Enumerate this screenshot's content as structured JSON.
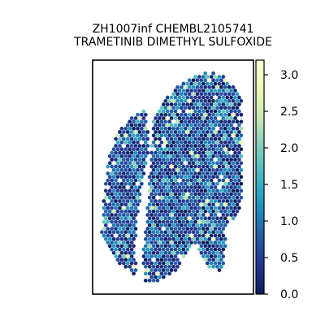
{
  "chart_data": {
    "type": "scatter",
    "subtype": "spatial-hexbin",
    "title_line1": "ZH1007inf CHEMBL2105741",
    "title_line2": "TRAMETINIB DIMETHYL SULFOXIDE",
    "xlabel": "",
    "ylabel": "",
    "x_ticks_visible": false,
    "y_ticks_visible": false,
    "grid": false,
    "colorbar": {
      "colormap": "YlGnBu_r",
      "range": [
        0.0,
        3.2
      ],
      "ticks": [
        0.0,
        0.5,
        1.0,
        1.5,
        2.0,
        2.5,
        3.0
      ],
      "tick_labels": [
        "0.0",
        "0.5",
        "1.0",
        "1.5",
        "2.0",
        "2.5",
        "3.0"
      ],
      "placement": "right"
    },
    "colormap_stops": [
      "#081d58",
      "#253494",
      "#225ea8",
      "#1d91c0",
      "#41b6c4",
      "#7fcdbb",
      "#c7e9b4",
      "#edf8b1",
      "#ffffd9"
    ]
  }
}
